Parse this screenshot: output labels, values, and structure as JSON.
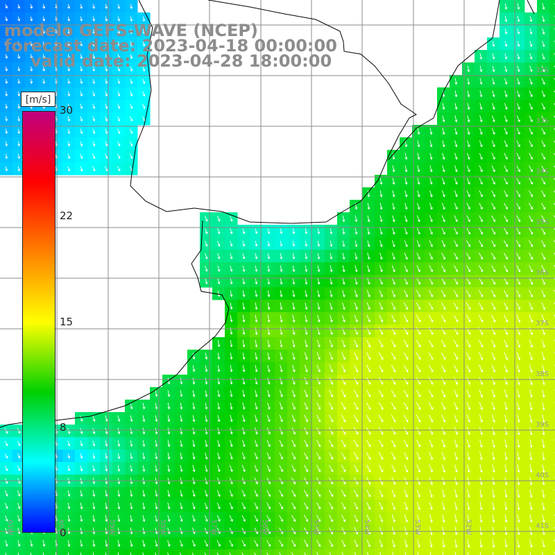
{
  "header": {
    "model": "modelo GEFS-WAVE (NCEP)",
    "forecast": "forecast date: 2023-04-18 00:00:00",
    "valid": "valid date: 2023-04-28 18:00:00"
  },
  "colorbar": {
    "unit": "[m/s]",
    "ticks": [
      "30",
      "22",
      "15",
      "8",
      "0"
    ],
    "range": [
      0,
      30
    ],
    "colors": [
      "#0000ff",
      "#00ffff",
      "#00d000",
      "#ffff00",
      "#ff8000",
      "#ff0000",
      "#c00080"
    ]
  },
  "grid": {
    "lat_labels": [
      "32S",
      "33S",
      "34S",
      "35S",
      "36S",
      "37S",
      "38S",
      "39S",
      "40S",
      "41S"
    ],
    "lon_labels": [
      "61W",
      "60W",
      "59W",
      "58W",
      "57W",
      "56W",
      "55W",
      "54W",
      "53W",
      "52W"
    ]
  },
  "colors": {
    "land": "#ffffff",
    "coastline": "#000000",
    "gridline": "#8a8a8a",
    "arrow": "#ffffff",
    "title": "#8c8c8c"
  }
}
